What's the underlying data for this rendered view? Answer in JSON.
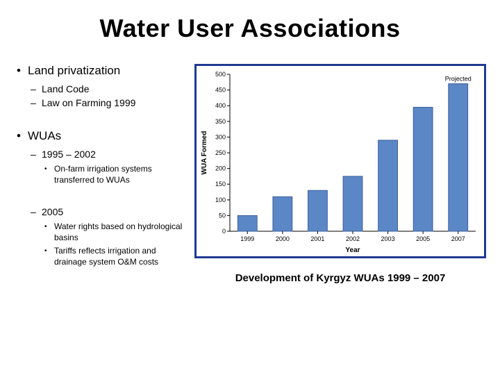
{
  "title": "Water User Associations",
  "bullets": {
    "item1": {
      "label": "Land privatization",
      "sub1": "Land Code",
      "sub2": "Law on Farming 1999"
    },
    "item2": {
      "label": "WUAs",
      "sub1": {
        "label": "1995 – 2002",
        "detail1": "On-farm irrigation systems transferred to WUAs"
      },
      "sub2": {
        "label": "2005",
        "detail1": "Water rights based on hydrological basins",
        "detail2": "Tariffs reflects irrigation and drainage system O&M costs"
      }
    }
  },
  "chart": {
    "type": "bar",
    "categories": [
      "1999",
      "2000",
      "2001",
      "2002",
      "2003",
      "2005",
      "2007"
    ],
    "values": [
      50,
      110,
      130,
      175,
      290,
      395,
      470
    ],
    "bar_color": "#5b87c7",
    "bar_border": "#3a5f9a",
    "background_color": "#ffffff",
    "frame_color": "#1f3a93",
    "axis_color": "#000000",
    "ylim": [
      0,
      500
    ],
    "ytick_step": 50,
    "x_title": "Year",
    "y_title": "WUA Formed",
    "bar_width": 0.55,
    "projected_label": "Projected",
    "tick_fontsize": 9,
    "title_fontsize": 10
  },
  "caption": "Development of Kyrgyz WUAs 1999 – 2007"
}
